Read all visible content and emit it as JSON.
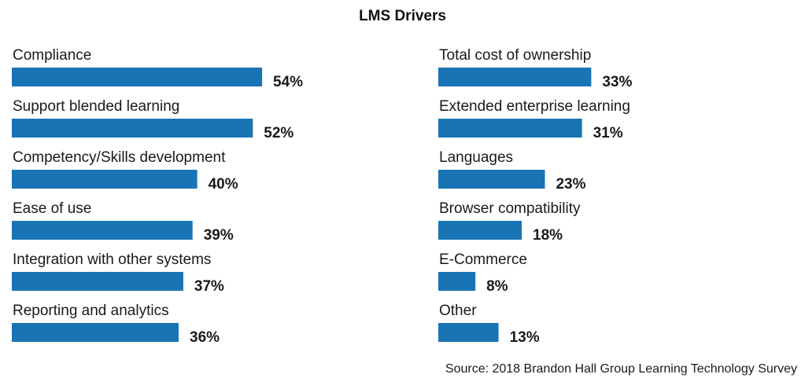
{
  "chart_data": {
    "type": "bar",
    "orientation": "horizontal",
    "title": "LMS Drivers",
    "source": "Source: 2018 Brandon Hall Group Learning Technology Survey",
    "bar_color": "#1874b4",
    "columns": [
      {
        "categories": [
          "Compliance",
          "Support blended learning",
          "Competency/Skills development",
          "Ease of use",
          "Integration with other systems",
          "Reporting and analytics"
        ],
        "values": [
          54,
          52,
          40,
          39,
          37,
          36
        ],
        "labels": [
          "54%",
          "52%",
          "40%",
          "39%",
          "37%",
          "36%"
        ]
      },
      {
        "categories": [
          "Total cost of ownership",
          "Extended enterprise learning",
          "Languages",
          "Browser compatibility",
          "E-Commerce",
          "Other"
        ],
        "values": [
          33,
          31,
          23,
          18,
          8,
          13
        ],
        "labels": [
          "33%",
          "31%",
          "23%",
          "18%",
          "8%",
          "13%"
        ]
      }
    ]
  }
}
